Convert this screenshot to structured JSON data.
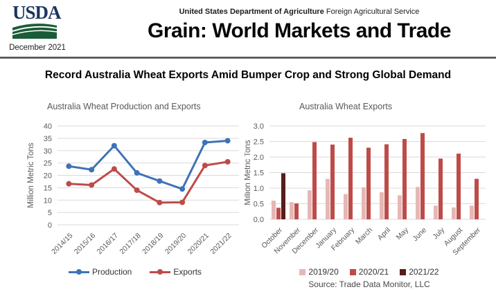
{
  "header": {
    "logo_text": "USDA",
    "date": "December 2021",
    "agency_bold": "United States Department of Agriculture",
    "agency_regular": "Foreign Agricultural Service",
    "title": "Grain: World Markets and Trade"
  },
  "article": {
    "headline": "Record Australia Wheat Exports Amid Bumper Crop and Strong Global Demand",
    "source": "Source: Trade Data Monitor, LLC"
  },
  "colors": {
    "logo_navy": "#1B3561",
    "logo_green": "#1A5C38",
    "divider": "#3A3A3A",
    "chart_text": "#595959",
    "gridline": "#D9D9D9",
    "production_blue": "#3E73B5",
    "exports_red": "#BE4B48",
    "bar_2019_20": "#E5B8B5",
    "bar_2020_21": "#BE4B48",
    "bar_2021_22": "#571D1B"
  },
  "chart_data": [
    {
      "type": "line",
      "title": "Australia Wheat Production and Exports",
      "xlabel": "",
      "ylabel": "Million Metric Tons",
      "ylim": [
        0,
        40
      ],
      "ytick_step": 5,
      "grid": true,
      "legend_position": "bottom",
      "categories": [
        "2014/15",
        "2015/16",
        "2016/17",
        "2017/18",
        "2018/19",
        "2019/20",
        "2020/21",
        "2021/22"
      ],
      "series": [
        {
          "name": "Production",
          "color": "#3E73B5",
          "values": [
            23.7,
            22.3,
            32.0,
            21.0,
            17.7,
            14.5,
            33.3,
            34.0
          ]
        },
        {
          "name": "Exports",
          "color": "#BE4B48",
          "values": [
            16.6,
            16.1,
            22.6,
            14.0,
            9.0,
            9.1,
            24.0,
            25.5
          ]
        }
      ]
    },
    {
      "type": "bar",
      "title": "Australia Wheat Exports",
      "xlabel": "",
      "ylabel": "Million Metric Tons",
      "ylim": [
        0.0,
        3.0
      ],
      "ytick_step": 0.5,
      "grid": true,
      "legend_position": "bottom",
      "categories": [
        "October",
        "November",
        "December",
        "January",
        "February",
        "March",
        "April",
        "May",
        "June",
        "July",
        "August",
        "September"
      ],
      "series": [
        {
          "name": "2019/20",
          "color": "#E5B8B5",
          "values": [
            0.6,
            0.55,
            0.93,
            1.3,
            0.81,
            1.03,
            0.87,
            0.77,
            1.04,
            0.44,
            0.38,
            0.44
          ]
        },
        {
          "name": "2020/21",
          "color": "#BE4B48",
          "values": [
            0.37,
            0.51,
            2.48,
            2.4,
            2.62,
            2.3,
            2.41,
            2.58,
            2.77,
            1.95,
            2.11,
            1.3
          ]
        },
        {
          "name": "2021/22",
          "color": "#571D1B",
          "values": [
            1.48,
            null,
            null,
            null,
            null,
            null,
            null,
            null,
            null,
            null,
            null,
            null
          ]
        }
      ]
    }
  ]
}
